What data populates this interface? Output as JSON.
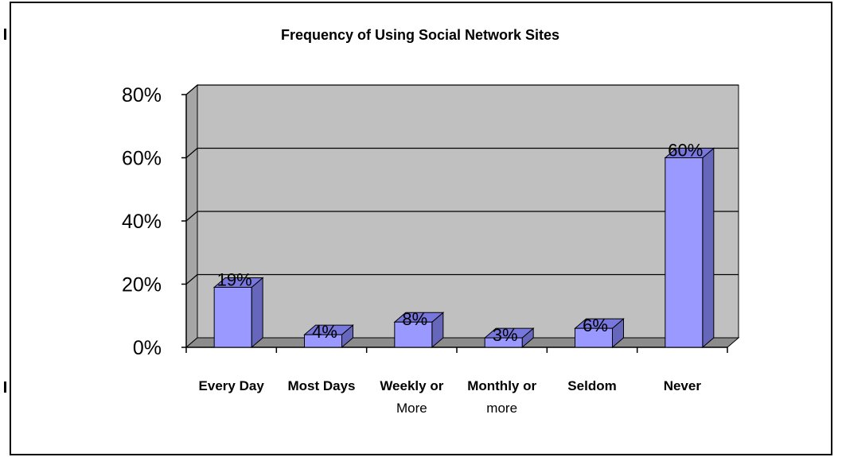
{
  "chart_data": {
    "type": "bar",
    "title": "Frequency of Using Social Network Sites",
    "categories": [
      [
        "Every Day"
      ],
      [
        "Most Days"
      ],
      [
        "Weekly or",
        "More"
      ],
      [
        "Monthly or",
        "more"
      ],
      [
        "Seldom"
      ],
      [
        "Never"
      ]
    ],
    "values": [
      19,
      4,
      8,
      3,
      6,
      60
    ],
    "data_labels": [
      "19%",
      "4%",
      "8%",
      "3%",
      "6%",
      "60%"
    ],
    "yticks": [
      "0%",
      "20%",
      "40%",
      "60%",
      "80%"
    ],
    "ylim": [
      0,
      80
    ],
    "grid": true,
    "three_d": true,
    "colors": {
      "bar_front": "#9999ff",
      "bar_side": "#6666bb",
      "bar_top": "#7777dd",
      "wall": "#c0c0c0",
      "floor": "#8c8c8c"
    }
  }
}
